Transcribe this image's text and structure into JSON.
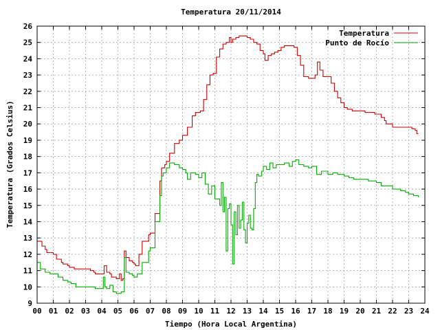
{
  "chart_data": {
    "type": "line",
    "title": "Temperatura 20/11/2014",
    "xlabel": "Tiempo (Hora Local Argentina)",
    "ylabel": "Temperatura (Grados Celsius)",
    "xlim": [
      0,
      24
    ],
    "ylim": [
      9,
      26
    ],
    "grid": true,
    "legend_position": "top-right",
    "x_tick_labels": [
      "00",
      "01",
      "02",
      "03",
      "04",
      "05",
      "06",
      "07",
      "08",
      "09",
      "10",
      "11",
      "12",
      "13",
      "14",
      "15",
      "16",
      "17",
      "18",
      "19",
      "20",
      "21",
      "22",
      "23",
      "24"
    ],
    "y_tick_labels": [
      "9",
      "10",
      "11",
      "12",
      "13",
      "14",
      "15",
      "16",
      "17",
      "18",
      "19",
      "20",
      "21",
      "22",
      "23",
      "24",
      "25",
      "26"
    ],
    "series": [
      {
        "name": "Temperatura",
        "color": "#cc0000",
        "x": [
          0,
          0.3,
          0.5,
          0.6,
          1.0,
          1.2,
          1.5,
          1.6,
          1.9,
          2.0,
          2.3,
          2.5,
          2.6,
          3.0,
          3.3,
          3.5,
          3.6,
          3.9,
          4.0,
          4.15,
          4.3,
          4.5,
          4.6,
          4.9,
          5.0,
          5.1,
          5.2,
          5.3,
          5.4,
          5.5,
          5.7,
          5.9,
          6.0,
          6.1,
          6.3,
          6.5,
          6.9,
          7.0,
          7.3,
          7.6,
          7.7,
          7.9,
          8.0,
          8.2,
          8.5,
          8.8,
          9.0,
          9.3,
          9.6,
          9.8,
          10.0,
          10.1,
          10.3,
          10.5,
          10.7,
          10.9,
          11.1,
          11.3,
          11.5,
          11.7,
          11.9,
          12.0,
          12.1,
          12.3,
          12.5,
          12.8,
          13.0,
          13.2,
          13.4,
          13.6,
          13.8,
          14.0,
          14.1,
          14.3,
          14.5,
          14.7,
          14.9,
          15.1,
          15.3,
          15.5,
          15.7,
          15.9,
          16.1,
          16.3,
          16.5,
          16.8,
          17.0,
          17.2,
          17.35,
          17.5,
          17.7,
          18.0,
          18.2,
          18.4,
          18.6,
          18.8,
          19.0,
          19.2,
          19.5,
          19.8,
          20.0,
          20.3,
          20.6,
          20.9,
          21.0,
          21.3,
          21.5,
          21.6,
          22.0,
          22.4,
          22.8,
          23.2,
          23.4,
          23.5,
          23.6
        ],
        "values": [
          12.8,
          12.5,
          12.3,
          12.1,
          12.0,
          11.7,
          11.5,
          11.4,
          11.3,
          11.2,
          11.1,
          11.1,
          11.1,
          11.1,
          11.0,
          10.9,
          10.8,
          10.8,
          10.8,
          11.3,
          10.9,
          10.8,
          10.6,
          10.5,
          10.5,
          10.8,
          10.4,
          10.5,
          12.2,
          11.8,
          11.6,
          11.5,
          11.4,
          11.3,
          12.0,
          12.8,
          13.2,
          13.3,
          14.5,
          16.5,
          17.3,
          17.5,
          17.7,
          18.2,
          18.8,
          19.0,
          19.3,
          19.8,
          20.5,
          20.7,
          20.7,
          20.8,
          21.5,
          22.4,
          23.0,
          23.1,
          24.1,
          24.6,
          24.9,
          25.0,
          25.3,
          25.0,
          25.2,
          25.3,
          25.4,
          25.4,
          25.3,
          25.2,
          25.0,
          24.9,
          24.5,
          24.3,
          23.9,
          24.2,
          24.3,
          24.4,
          24.5,
          24.7,
          24.8,
          24.8,
          24.8,
          24.7,
          24.2,
          23.6,
          22.9,
          22.8,
          22.8,
          23.0,
          23.8,
          23.3,
          22.9,
          22.9,
          22.5,
          22.0,
          21.6,
          21.3,
          21.0,
          20.9,
          20.8,
          20.8,
          20.8,
          20.7,
          20.7,
          20.6,
          20.6,
          20.4,
          20.2,
          20.0,
          19.8,
          19.8,
          19.8,
          19.7,
          19.6,
          19.4,
          19.4
        ]
      },
      {
        "name": "Punto de Rocío",
        "color": "#00aa00",
        "x": [
          0,
          0.2,
          0.5,
          0.8,
          1.0,
          1.3,
          1.6,
          1.9,
          2.1,
          2.4,
          2.6,
          2.9,
          3.1,
          3.4,
          3.6,
          3.8,
          4.0,
          4.1,
          4.2,
          4.3,
          4.5,
          4.7,
          4.9,
          5.0,
          5.1,
          5.2,
          5.3,
          5.4,
          5.5,
          5.7,
          5.9,
          6.0,
          6.2,
          6.5,
          6.9,
          7.0,
          7.3,
          7.6,
          7.7,
          7.8,
          8.0,
          8.2,
          8.5,
          8.8,
          9.0,
          9.2,
          9.3,
          9.5,
          9.8,
          10.0,
          10.2,
          10.4,
          10.6,
          10.8,
          11.0,
          11.2,
          11.3,
          11.4,
          11.5,
          11.6,
          11.7,
          11.8,
          11.9,
          12.0,
          12.1,
          12.2,
          12.3,
          12.4,
          12.5,
          12.6,
          12.7,
          12.8,
          12.9,
          13.0,
          13.1,
          13.2,
          13.3,
          13.4,
          13.5,
          13.6,
          13.7,
          13.9,
          14.0,
          14.2,
          14.4,
          14.6,
          14.8,
          15.0,
          15.3,
          15.6,
          15.8,
          15.9,
          16.0,
          16.2,
          16.5,
          16.8,
          17.0,
          17.3,
          17.6,
          18.0,
          18.3,
          18.6,
          19.0,
          19.3,
          19.6,
          20.0,
          20.5,
          21.0,
          21.3,
          21.7,
          22.0,
          22.5,
          22.8,
          23.0,
          23.3,
          23.5,
          23.6
        ],
        "values": [
          11.5,
          11.1,
          10.9,
          10.8,
          10.8,
          10.6,
          10.4,
          10.3,
          10.2,
          10.0,
          10.0,
          10.0,
          10.0,
          10.0,
          9.9,
          9.9,
          9.9,
          10.6,
          10.0,
          9.9,
          10.1,
          9.7,
          9.6,
          9.6,
          9.6,
          9.7,
          9.7,
          11.8,
          10.9,
          10.8,
          10.7,
          10.6,
          10.8,
          11.5,
          12.2,
          12.4,
          14.0,
          15.6,
          16.8,
          17.0,
          17.3,
          17.6,
          17.5,
          17.3,
          17.2,
          17.0,
          16.6,
          17.0,
          16.9,
          16.7,
          17.0,
          16.3,
          15.7,
          16.2,
          15.4,
          15.4,
          15.0,
          16.4,
          14.6,
          15.5,
          12.2,
          14.8,
          15.1,
          13.8,
          11.4,
          14.6,
          13.2,
          15.0,
          13.6,
          14.1,
          15.2,
          13.5,
          12.7,
          13.9,
          14.4,
          13.6,
          13.5,
          14.8,
          16.4,
          16.9,
          16.8,
          17.1,
          17.4,
          17.2,
          17.6,
          17.3,
          17.5,
          17.5,
          17.6,
          17.4,
          17.7,
          17.7,
          17.8,
          17.5,
          17.4,
          17.3,
          17.4,
          16.9,
          17.1,
          16.9,
          17.0,
          16.9,
          16.8,
          16.7,
          16.6,
          16.6,
          16.5,
          16.4,
          16.2,
          16.2,
          16.0,
          15.9,
          15.8,
          15.7,
          15.6,
          15.6,
          15.5
        ]
      }
    ]
  }
}
